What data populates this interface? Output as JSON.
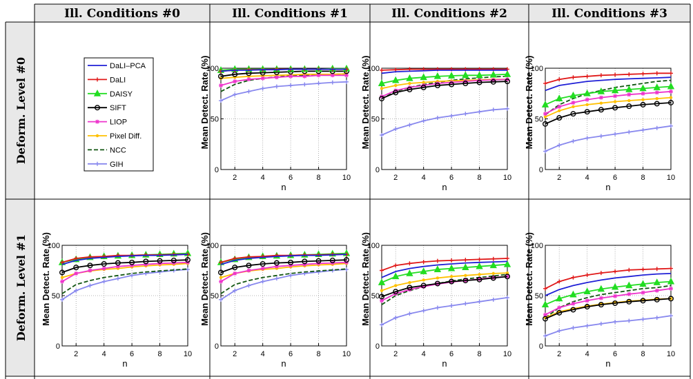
{
  "headers": {
    "columns": [
      "Ill. Conditions #0",
      "Ill. Conditions #1",
      "Ill. Conditions #2",
      "Ill. Conditions #3"
    ],
    "rows": [
      "Deform. Level #0",
      "Deform. Level #1"
    ]
  },
  "legend": [
    {
      "name": "DaLI–PCA",
      "color": "#1f1fd6",
      "marker": "none",
      "dash": false
    },
    {
      "name": "DaLI",
      "color": "#e01818",
      "marker": "plus",
      "dash": false
    },
    {
      "name": "DAISY",
      "color": "#22dd22",
      "marker": "triangle",
      "dash": false
    },
    {
      "name": "SIFT",
      "color": "#000000",
      "marker": "circle",
      "dash": false
    },
    {
      "name": "LIOP",
      "color": "#ee33cc",
      "marker": "star",
      "dash": false
    },
    {
      "name": "Pixel Diff.",
      "color": "#ffc000",
      "marker": "dot",
      "dash": false
    },
    {
      "name": "NCC",
      "color": "#115511",
      "marker": "none",
      "dash": true
    },
    {
      "name": "GIH",
      "color": "#8888ee",
      "marker": "plus",
      "dash": false
    }
  ],
  "chart_data": [
    {
      "type": "line",
      "row": 0,
      "col": 1,
      "xlabel": "n",
      "ylabel": "Mean Detect. Rate (%)",
      "xlim": [
        1,
        10
      ],
      "ylim": [
        0,
        100
      ],
      "xticks": [
        2,
        4,
        6,
        8,
        10
      ],
      "yticks": [
        0,
        50,
        100
      ],
      "grid": true,
      "x": [
        1,
        2,
        3,
        4,
        5,
        6,
        7,
        8,
        9,
        10
      ],
      "series": [
        {
          "name": "DaLI–PCA",
          "values": [
            97,
            98,
            98,
            98.5,
            98.5,
            99,
            99,
            99,
            99,
            99
          ]
        },
        {
          "name": "DaLI",
          "values": [
            97,
            98,
            98.5,
            98.5,
            99,
            99,
            99,
            99,
            99,
            99
          ]
        },
        {
          "name": "DAISY",
          "values": [
            98,
            99,
            99,
            99,
            99,
            99,
            99,
            99,
            99.5,
            99.5
          ]
        },
        {
          "name": "SIFT",
          "values": [
            92,
            94,
            95,
            95.5,
            96,
            96.5,
            97,
            97,
            97,
            97
          ]
        },
        {
          "name": "LIOP",
          "values": [
            83,
            87,
            89,
            90,
            91,
            92,
            92,
            93,
            93,
            93
          ]
        },
        {
          "name": "Pixel Diff.",
          "values": [
            90,
            91,
            92,
            92.5,
            93,
            93.5,
            94,
            94,
            94,
            94.5
          ]
        },
        {
          "name": "NCC",
          "values": [
            77,
            84,
            88,
            90,
            91.5,
            92.5,
            93,
            93.5,
            94,
            94.5
          ]
        },
        {
          "name": "GIH",
          "values": [
            68,
            74,
            77,
            80,
            82,
            83,
            84,
            85,
            86,
            86.5
          ]
        }
      ]
    },
    {
      "type": "line",
      "row": 0,
      "col": 2,
      "xlabel": "n",
      "ylabel": "Mean Detect. Rate (%)",
      "xlim": [
        1,
        10
      ],
      "ylim": [
        0,
        100
      ],
      "xticks": [
        2,
        4,
        6,
        8,
        10
      ],
      "yticks": [
        0,
        50,
        100
      ],
      "grid": true,
      "x": [
        1,
        2,
        3,
        4,
        5,
        6,
        7,
        8,
        9,
        10
      ],
      "series": [
        {
          "name": "DaLI–PCA",
          "values": [
            95,
            96.5,
            97,
            97.5,
            98,
            98,
            98,
            98,
            98,
            98
          ]
        },
        {
          "name": "DaLI",
          "values": [
            98,
            98.5,
            99,
            99,
            99,
            99,
            99,
            99,
            99,
            99
          ]
        },
        {
          "name": "DAISY",
          "values": [
            85,
            88,
            90,
            91,
            92,
            92.5,
            93,
            93,
            93.5,
            94
          ]
        },
        {
          "name": "SIFT",
          "values": [
            70,
            76,
            79,
            81,
            83,
            84,
            85,
            86,
            86.5,
            87
          ]
        },
        {
          "name": "LIOP",
          "values": [
            72,
            78,
            81,
            83,
            85,
            86,
            87,
            88,
            88.5,
            89
          ]
        },
        {
          "name": "Pixel Diff.",
          "values": [
            80,
            83,
            85,
            86,
            87,
            87.5,
            88,
            88.5,
            89,
            89
          ]
        },
        {
          "name": "NCC",
          "values": [
            70,
            77,
            81,
            84,
            86,
            88,
            89.5,
            90.5,
            91.5,
            92
          ]
        },
        {
          "name": "GIH",
          "values": [
            34,
            40,
            44,
            48,
            51,
            53,
            55,
            57,
            59,
            60
          ]
        }
      ]
    },
    {
      "type": "line",
      "row": 0,
      "col": 3,
      "xlabel": "n",
      "ylabel": "Mean Detect. Rate (%)",
      "xlim": [
        1,
        10
      ],
      "ylim": [
        0,
        100
      ],
      "xticks": [
        2,
        4,
        6,
        8,
        10
      ],
      "yticks": [
        0,
        50,
        100
      ],
      "grid": true,
      "x": [
        1,
        2,
        3,
        4,
        5,
        6,
        7,
        8,
        9,
        10
      ],
      "series": [
        {
          "name": "DaLI–PCA",
          "values": [
            78,
            83,
            85,
            87,
            88,
            89,
            89.5,
            90,
            90.5,
            91
          ]
        },
        {
          "name": "DaLI",
          "values": [
            85,
            89,
            91,
            92,
            93,
            93.5,
            94,
            94.5,
            95,
            95
          ]
        },
        {
          "name": "DAISY",
          "values": [
            64,
            70,
            73,
            75,
            77,
            78,
            79,
            80,
            81,
            82
          ]
        },
        {
          "name": "SIFT",
          "values": [
            45,
            51,
            55,
            57,
            59,
            61,
            62.5,
            64,
            65,
            66
          ]
        },
        {
          "name": "LIOP",
          "values": [
            55,
            62,
            66,
            69,
            71,
            72.5,
            74,
            75,
            76,
            77
          ]
        },
        {
          "name": "Pixel Diff.",
          "values": [
            52,
            58,
            62,
            64,
            65.5,
            67,
            68,
            69,
            70,
            71
          ]
        },
        {
          "name": "NCC",
          "values": [
            54,
            64,
            70,
            75,
            78,
            81,
            83,
            85,
            87,
            88
          ]
        },
        {
          "name": "GIH",
          "values": [
            18,
            24,
            28,
            31,
            33,
            35,
            37,
            39,
            41,
            43
          ]
        }
      ]
    },
    {
      "type": "line",
      "row": 1,
      "col": 0,
      "xlabel": "n",
      "ylabel": "Mean Detect. Rate (%)",
      "xlim": [
        1,
        10
      ],
      "ylim": [
        0,
        100
      ],
      "xticks": [
        2,
        4,
        6,
        8,
        10
      ],
      "yticks": [
        0,
        50,
        100
      ],
      "grid": true,
      "x": [
        1,
        2,
        3,
        4,
        5,
        6,
        7,
        8,
        9,
        10
      ],
      "series": [
        {
          "name": "DaLI–PCA",
          "values": [
            81,
            85,
            87,
            88,
            89,
            89.5,
            90,
            90,
            90.5,
            91
          ]
        },
        {
          "name": "DaLI",
          "values": [
            83,
            87,
            88.5,
            89,
            90,
            90,
            90.5,
            90.5,
            91,
            91
          ]
        },
        {
          "name": "DAISY",
          "values": [
            83,
            86,
            88,
            89,
            89.5,
            90,
            90.5,
            91,
            91.5,
            92
          ]
        },
        {
          "name": "SIFT",
          "values": [
            73,
            78,
            80,
            81.5,
            82.5,
            83,
            84,
            84.5,
            85,
            85.5
          ]
        },
        {
          "name": "LIOP",
          "values": [
            64,
            72,
            75,
            77,
            79,
            80,
            81,
            82,
            82.5,
            83
          ]
        },
        {
          "name": "Pixel Diff.",
          "values": [
            68,
            72,
            74.5,
            76,
            77,
            78.5,
            79.5,
            80.5,
            81,
            82
          ]
        },
        {
          "name": "NCC",
          "values": [
            52,
            61,
            65,
            68,
            70,
            72,
            73.5,
            74.5,
            75.5,
            76.5
          ]
        },
        {
          "name": "GIH",
          "values": [
            46,
            55,
            60,
            64,
            67,
            70,
            72,
            73.5,
            75,
            76
          ]
        }
      ]
    },
    {
      "type": "line",
      "row": 1,
      "col": 1,
      "xlabel": "n",
      "ylabel": "Mean Detect. Rate (%)",
      "xlim": [
        1,
        10
      ],
      "ylim": [
        0,
        100
      ],
      "xticks": [
        2,
        4,
        6,
        8,
        10
      ],
      "yticks": [
        0,
        50,
        100
      ],
      "grid": true,
      "x": [
        1,
        2,
        3,
        4,
        5,
        6,
        7,
        8,
        9,
        10
      ],
      "series": [
        {
          "name": "DaLI–PCA",
          "values": [
            81,
            85,
            87,
            88,
            89,
            89.5,
            90,
            90,
            90.5,
            91
          ]
        },
        {
          "name": "DaLI",
          "values": [
            83,
            87,
            88.5,
            89,
            90,
            90,
            90.5,
            90.5,
            91,
            91
          ]
        },
        {
          "name": "DAISY",
          "values": [
            83,
            86,
            88,
            89,
            89.5,
            90,
            90.5,
            91,
            91.5,
            92
          ]
        },
        {
          "name": "SIFT",
          "values": [
            73,
            78,
            80,
            81.5,
            82.5,
            83,
            84,
            84.5,
            85,
            85.5
          ]
        },
        {
          "name": "LIOP",
          "values": [
            64,
            72,
            75,
            77,
            79,
            80,
            81,
            82,
            82.5,
            83
          ]
        },
        {
          "name": "Pixel Diff.",
          "values": [
            68,
            72,
            74.5,
            76,
            77,
            78.5,
            79.5,
            80.5,
            81,
            82
          ]
        },
        {
          "name": "NCC",
          "values": [
            52,
            61,
            65,
            68,
            70,
            72,
            73.5,
            74.5,
            75.5,
            76.5
          ]
        },
        {
          "name": "GIH",
          "values": [
            46,
            55,
            60,
            64,
            67,
            70,
            72,
            73.5,
            75,
            76
          ]
        }
      ]
    },
    {
      "type": "line",
      "row": 1,
      "col": 2,
      "xlabel": "n",
      "ylabel": "Mean Detect. Rate (%)",
      "xlim": [
        1,
        10
      ],
      "ylim": [
        0,
        100
      ],
      "xticks": [
        2,
        4,
        6,
        8,
        10
      ],
      "yticks": [
        0,
        50,
        100
      ],
      "grid": true,
      "x": [
        1,
        2,
        3,
        4,
        5,
        6,
        7,
        8,
        9,
        10
      ],
      "series": [
        {
          "name": "DaLI–PCA",
          "values": [
            68,
            74,
            77,
            79,
            80.5,
            81.5,
            82.5,
            83,
            83.5,
            84
          ]
        },
        {
          "name": "DaLI",
          "values": [
            75,
            80,
            82,
            83.5,
            84.5,
            85,
            85.5,
            86,
            86.5,
            87
          ]
        },
        {
          "name": "DAISY",
          "values": [
            63,
            69,
            72,
            74,
            76,
            77,
            78,
            79,
            80,
            81
          ]
        },
        {
          "name": "SIFT",
          "values": [
            49,
            54,
            58,
            60,
            62,
            64,
            65,
            66,
            67.5,
            69
          ]
        },
        {
          "name": "LIOP",
          "values": [
            45,
            52,
            56,
            59,
            61.5,
            63.5,
            65,
            66.5,
            68,
            69
          ]
        },
        {
          "name": "Pixel Diff.",
          "values": [
            55,
            60,
            63,
            65.5,
            67.5,
            69,
            70,
            71,
            72,
            72.5
          ]
        },
        {
          "name": "NCC",
          "values": [
            41,
            50,
            55,
            59,
            62,
            64.5,
            66.5,
            68,
            69.5,
            71
          ]
        },
        {
          "name": "GIH",
          "values": [
            21,
            28,
            32,
            35,
            38,
            40,
            42,
            44,
            46,
            48
          ]
        }
      ]
    },
    {
      "type": "line",
      "row": 1,
      "col": 3,
      "xlabel": "n",
      "ylabel": "Mean Detect. Rate (%)",
      "xlim": [
        1,
        10
      ],
      "ylim": [
        0,
        100
      ],
      "xticks": [
        2,
        4,
        6,
        8,
        10
      ],
      "yticks": [
        0,
        50,
        100
      ],
      "grid": true,
      "x": [
        1,
        2,
        3,
        4,
        5,
        6,
        7,
        8,
        9,
        10
      ],
      "series": [
        {
          "name": "DaLI–PCA",
          "values": [
            50,
            56,
            60,
            63,
            65.5,
            67.5,
            69,
            70.5,
            71.5,
            72
          ]
        },
        {
          "name": "DaLI",
          "values": [
            57,
            64,
            68,
            70.5,
            72.5,
            74,
            75.5,
            76,
            76.5,
            77
          ]
        },
        {
          "name": "DAISY",
          "values": [
            41,
            47,
            51,
            54,
            56.5,
            58.5,
            60,
            61.5,
            63,
            64
          ]
        },
        {
          "name": "SIFT",
          "values": [
            27,
            33,
            36,
            39,
            41,
            42.5,
            44,
            45,
            46,
            47
          ]
        },
        {
          "name": "LIOP",
          "values": [
            31,
            38,
            42,
            45,
            47.5,
            49.5,
            51.5,
            53,
            55,
            57
          ]
        },
        {
          "name": "Pixel Diff.",
          "values": [
            28,
            34,
            37,
            39.5,
            41.5,
            43,
            44.5,
            45.5,
            46.5,
            47
          ]
        },
        {
          "name": "NCC",
          "values": [
            28,
            38,
            44,
            48,
            51,
            53,
            55,
            57,
            58,
            60
          ]
        },
        {
          "name": "GIH",
          "values": [
            10,
            15,
            18,
            20,
            22,
            24,
            25,
            26.5,
            28,
            30
          ]
        }
      ]
    }
  ]
}
